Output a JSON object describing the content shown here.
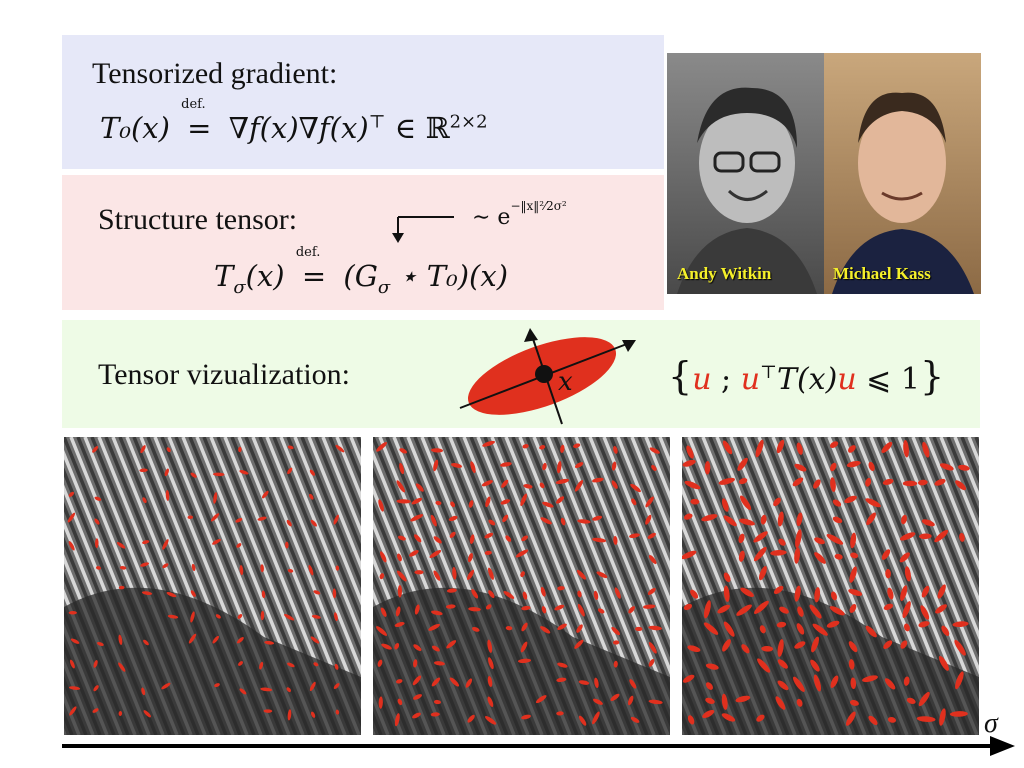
{
  "tensorized": {
    "heading": "Tensorized gradient:",
    "lhs": "T₀(x)",
    "def": "def.",
    "rhs": "∇f(x)∇f(x)",
    "transpose": "⊤",
    "in": "∈ ℝ",
    "dim": "2×2"
  },
  "structure": {
    "heading": "Structure tensor:",
    "kernel": "∼ e",
    "kernel_exp": "−‖x‖²⁄2σ²",
    "lhs": "T",
    "lhs_sub": "σ",
    "lhs_arg": "(x)",
    "def": "def.",
    "rhs": "(G",
    "rhs_sub": "σ",
    "rhs_rest": "⋆ T₀)(x)"
  },
  "visualization": {
    "heading": "Tensor vizualization:",
    "glyph_label": "x",
    "set_open": "{",
    "u1": "u",
    "sep": " ; ",
    "u2": "u",
    "transpose": "⊤",
    "mid": "T(x)",
    "u3": "u",
    "leq": " ⩽ 1",
    "set_close": "}"
  },
  "photo": {
    "left_caption": "Andy Witkin",
    "right_caption": "Michael Kass"
  },
  "axis": {
    "label": "σ"
  },
  "colors": {
    "accent_red": "#e0301e",
    "caption_yellow": "#f5f02a",
    "panel_blue": "#e6e8f8",
    "panel_pink": "#fbe6e6",
    "panel_green": "#eefbe6"
  }
}
